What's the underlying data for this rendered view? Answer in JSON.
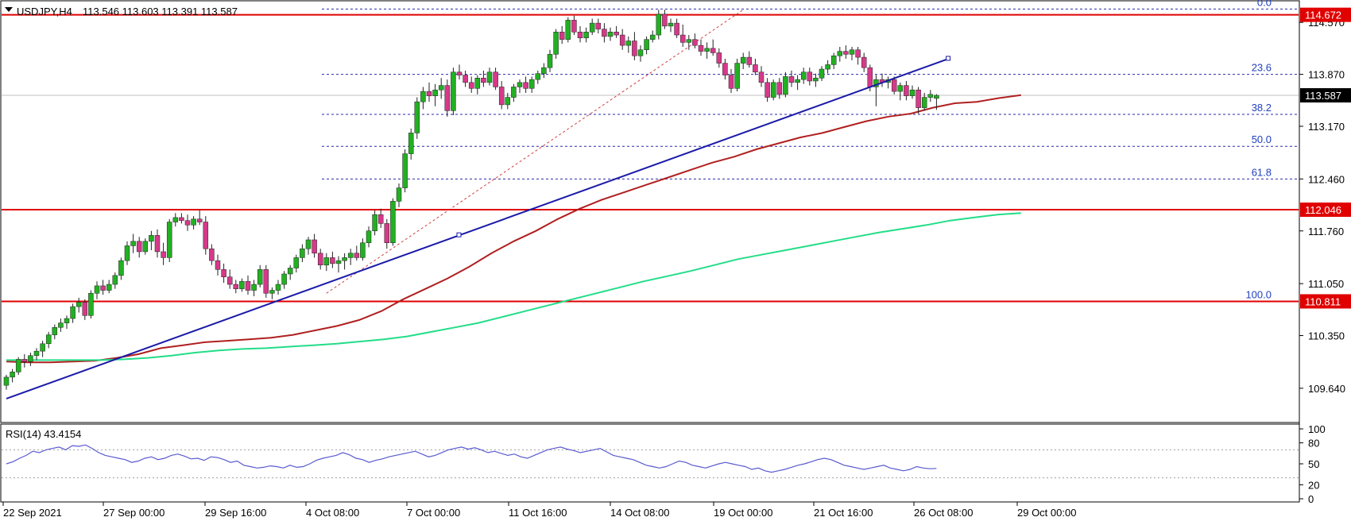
{
  "header": {
    "symbol": "USDJPY,H4",
    "ohlc": "113.546 113.603 113.391 113.587"
  },
  "rsi_header": "RSI(14) 43.4154",
  "colors": {
    "bull": "#22b022",
    "bear": "#d6398a",
    "ma_slow": "#b02020",
    "ma_long": "#22dd88",
    "trendline": "#1a1aa8",
    "resistance": "#e00000",
    "fib": "#2a2aa8",
    "rsi": "#5a5ad0"
  },
  "price_tags": [
    {
      "value": 114.672,
      "label": "114.672",
      "color": "#e00000"
    },
    {
      "value": 112.046,
      "label": "112.046",
      "color": "#e00000"
    },
    {
      "value": 110.811,
      "label": "110.811",
      "color": "#e00000"
    },
    {
      "value": 113.587,
      "label": "113.587",
      "color": "#000000"
    }
  ],
  "fib_levels": [
    {
      "label": "0.0",
      "value": 114.75
    },
    {
      "label": "23.6",
      "value": 113.87
    },
    {
      "label": "38.2",
      "value": 113.33
    },
    {
      "label": "50.0",
      "value": 112.9
    },
    {
      "label": "61.8",
      "value": 112.46
    },
    {
      "label": "100.0",
      "value": 110.81
    }
  ],
  "chart_data": {
    "type": "candlestick",
    "symbol": "USDJPY",
    "timeframe": "H4",
    "ylim": [
      109.2,
      114.85
    ],
    "y_ticks": [
      "114.570",
      "113.870",
      "113.170",
      "112.460",
      "111.760",
      "111.050",
      "110.350",
      "109.640"
    ],
    "x_ticks": [
      "22 Sep 2021",
      "27 Sep 00:00",
      "29 Sep 16:00",
      "4 Oct 08:00",
      "7 Oct 00:00",
      "11 Oct 16:00",
      "14 Oct 08:00",
      "19 Oct 00:00",
      "21 Oct 16:00",
      "26 Oct 08:00",
      "29 Oct 00:00"
    ],
    "candles": [
      [
        109.68,
        109.82,
        109.62,
        109.79
      ],
      [
        109.79,
        109.9,
        109.72,
        109.86
      ],
      [
        109.86,
        110.06,
        109.82,
        110.03
      ],
      [
        110.03,
        110.1,
        109.92,
        110.0
      ],
      [
        110.0,
        110.12,
        109.94,
        110.08
      ],
      [
        110.08,
        110.18,
        110.02,
        110.14
      ],
      [
        110.14,
        110.28,
        110.06,
        110.24
      ],
      [
        110.24,
        110.4,
        110.18,
        110.36
      ],
      [
        110.36,
        110.5,
        110.3,
        110.46
      ],
      [
        110.46,
        110.58,
        110.4,
        110.52
      ],
      [
        110.52,
        110.62,
        110.44,
        110.58
      ],
      [
        110.58,
        110.78,
        110.52,
        110.74
      ],
      [
        110.74,
        110.86,
        110.66,
        110.8
      ],
      [
        110.8,
        110.84,
        110.56,
        110.62
      ],
      [
        110.62,
        110.96,
        110.58,
        110.92
      ],
      [
        110.92,
        111.08,
        110.84,
        111.02
      ],
      [
        111.02,
        111.1,
        110.9,
        110.96
      ],
      [
        110.96,
        111.1,
        110.92,
        111.04
      ],
      [
        111.04,
        111.2,
        110.98,
        111.16
      ],
      [
        111.16,
        111.4,
        111.1,
        111.36
      ],
      [
        111.36,
        111.62,
        111.3,
        111.56
      ],
      [
        111.56,
        111.72,
        111.46,
        111.62
      ],
      [
        111.62,
        111.68,
        111.4,
        111.48
      ],
      [
        111.48,
        111.66,
        111.44,
        111.62
      ],
      [
        111.62,
        111.76,
        111.5,
        111.7
      ],
      [
        111.7,
        111.78,
        111.4,
        111.48
      ],
      [
        111.48,
        111.6,
        111.3,
        111.4
      ],
      [
        111.4,
        111.92,
        111.34,
        111.88
      ],
      [
        111.88,
        112.0,
        111.82,
        111.94
      ],
      [
        111.94,
        112.0,
        111.86,
        111.9
      ],
      [
        111.9,
        111.98,
        111.76,
        111.84
      ],
      [
        111.84,
        111.96,
        111.78,
        111.92
      ],
      [
        111.92,
        112.04,
        111.84,
        111.88
      ],
      [
        111.88,
        111.96,
        111.44,
        111.52
      ],
      [
        111.52,
        111.58,
        111.3,
        111.36
      ],
      [
        111.36,
        111.44,
        111.16,
        111.24
      ],
      [
        111.24,
        111.32,
        111.06,
        111.14
      ],
      [
        111.14,
        111.24,
        110.98,
        111.04
      ],
      [
        111.04,
        111.1,
        110.92,
        110.98
      ],
      [
        110.98,
        111.12,
        110.94,
        111.08
      ],
      [
        111.08,
        111.16,
        110.9,
        110.96
      ],
      [
        110.96,
        111.1,
        110.88,
        111.04
      ],
      [
        111.04,
        111.3,
        111.0,
        111.24
      ],
      [
        111.24,
        111.3,
        110.86,
        110.92
      ],
      [
        110.92,
        111.0,
        110.84,
        110.96
      ],
      [
        110.96,
        111.1,
        110.9,
        111.04
      ],
      [
        111.04,
        111.22,
        110.98,
        111.18
      ],
      [
        111.18,
        111.3,
        111.1,
        111.26
      ],
      [
        111.26,
        111.44,
        111.2,
        111.4
      ],
      [
        111.4,
        111.58,
        111.34,
        111.52
      ],
      [
        111.52,
        111.68,
        111.44,
        111.64
      ],
      [
        111.64,
        111.72,
        111.4,
        111.46
      ],
      [
        111.46,
        111.52,
        111.24,
        111.3
      ],
      [
        111.3,
        111.46,
        111.22,
        111.4
      ],
      [
        111.4,
        111.48,
        111.26,
        111.32
      ],
      [
        111.32,
        111.42,
        111.2,
        111.36
      ],
      [
        111.36,
        111.46,
        111.24,
        111.4
      ],
      [
        111.4,
        111.52,
        111.3,
        111.46
      ],
      [
        111.46,
        111.56,
        111.36,
        111.4
      ],
      [
        111.4,
        111.66,
        111.36,
        111.6
      ],
      [
        111.6,
        111.82,
        111.54,
        111.76
      ],
      [
        111.76,
        112.04,
        111.7,
        111.98
      ],
      [
        111.98,
        112.06,
        111.8,
        111.86
      ],
      [
        111.86,
        111.92,
        111.52,
        111.6
      ],
      [
        111.6,
        112.2,
        111.56,
        112.16
      ],
      [
        112.16,
        112.4,
        112.08,
        112.34
      ],
      [
        112.34,
        112.86,
        112.28,
        112.8
      ],
      [
        112.8,
        113.14,
        112.72,
        113.08
      ],
      [
        113.08,
        113.56,
        113.0,
        113.5
      ],
      [
        113.5,
        113.7,
        113.4,
        113.64
      ],
      [
        113.64,
        113.76,
        113.5,
        113.58
      ],
      [
        113.58,
        113.74,
        113.44,
        113.66
      ],
      [
        113.66,
        113.82,
        113.54,
        113.72
      ],
      [
        113.72,
        113.8,
        113.3,
        113.38
      ],
      [
        113.38,
        113.96,
        113.32,
        113.9
      ],
      [
        113.9,
        114.0,
        113.8,
        113.86
      ],
      [
        113.86,
        113.92,
        113.7,
        113.76
      ],
      [
        113.76,
        113.84,
        113.62,
        113.68
      ],
      [
        113.68,
        113.86,
        113.6,
        113.82
      ],
      [
        113.82,
        113.92,
        113.7,
        113.76
      ],
      [
        113.76,
        113.96,
        113.72,
        113.9
      ],
      [
        113.9,
        113.96,
        113.66,
        113.7
      ],
      [
        113.7,
        113.78,
        113.4,
        113.46
      ],
      [
        113.46,
        113.62,
        113.4,
        113.56
      ],
      [
        113.56,
        113.74,
        113.5,
        113.7
      ],
      [
        113.7,
        113.8,
        113.62,
        113.76
      ],
      [
        113.76,
        113.84,
        113.62,
        113.68
      ],
      [
        113.68,
        113.84,
        113.62,
        113.8
      ],
      [
        113.8,
        113.92,
        113.74,
        113.88
      ],
      [
        113.88,
        114.02,
        113.82,
        113.96
      ],
      [
        113.96,
        114.2,
        113.9,
        114.14
      ],
      [
        114.14,
        114.48,
        114.08,
        114.44
      ],
      [
        114.44,
        114.52,
        114.28,
        114.34
      ],
      [
        114.34,
        114.64,
        114.3,
        114.6
      ],
      [
        114.6,
        114.66,
        114.4,
        114.44
      ],
      [
        114.44,
        114.52,
        114.3,
        114.36
      ],
      [
        114.36,
        114.5,
        114.3,
        114.44
      ],
      [
        114.44,
        114.62,
        114.4,
        114.56
      ],
      [
        114.56,
        114.62,
        114.42,
        114.48
      ],
      [
        114.48,
        114.56,
        114.3,
        114.38
      ],
      [
        114.38,
        114.5,
        114.32,
        114.44
      ],
      [
        114.44,
        114.52,
        114.36,
        114.4
      ],
      [
        114.4,
        114.48,
        114.2,
        114.26
      ],
      [
        114.26,
        114.38,
        114.16,
        114.32
      ],
      [
        114.32,
        114.44,
        114.06,
        114.12
      ],
      [
        114.12,
        114.26,
        114.04,
        114.2
      ],
      [
        114.2,
        114.38,
        114.14,
        114.34
      ],
      [
        114.34,
        114.46,
        114.3,
        114.4
      ],
      [
        114.4,
        114.74,
        114.34,
        114.68
      ],
      [
        114.68,
        114.74,
        114.48,
        114.52
      ],
      [
        114.52,
        114.62,
        114.44,
        114.56
      ],
      [
        114.56,
        114.62,
        114.36,
        114.4
      ],
      [
        114.4,
        114.54,
        114.24,
        114.3
      ],
      [
        114.3,
        114.4,
        114.2,
        114.34
      ],
      [
        114.34,
        114.42,
        114.22,
        114.26
      ],
      [
        114.26,
        114.34,
        114.12,
        114.18
      ],
      [
        114.18,
        114.3,
        114.08,
        114.22
      ],
      [
        114.22,
        114.34,
        114.12,
        114.16
      ],
      [
        114.16,
        114.22,
        113.96,
        114.02
      ],
      [
        114.02,
        114.08,
        113.8,
        113.86
      ],
      [
        113.86,
        113.94,
        113.62,
        113.68
      ],
      [
        113.68,
        114.08,
        113.64,
        114.02
      ],
      [
        114.02,
        114.16,
        113.94,
        114.1
      ],
      [
        114.1,
        114.18,
        113.96,
        114.0
      ],
      [
        114.0,
        114.08,
        113.86,
        113.9
      ],
      [
        113.9,
        113.98,
        113.7,
        113.76
      ],
      [
        113.76,
        113.82,
        113.5,
        113.56
      ],
      [
        113.56,
        113.8,
        113.52,
        113.76
      ],
      [
        113.76,
        113.82,
        113.54,
        113.6
      ],
      [
        113.6,
        113.9,
        113.56,
        113.84
      ],
      [
        113.84,
        113.92,
        113.7,
        113.76
      ],
      [
        113.76,
        113.86,
        113.66,
        113.8
      ],
      [
        113.8,
        113.96,
        113.74,
        113.9
      ],
      [
        113.9,
        113.96,
        113.72,
        113.78
      ],
      [
        113.78,
        113.88,
        113.7,
        113.82
      ],
      [
        113.82,
        113.98,
        113.78,
        113.94
      ],
      [
        113.94,
        114.06,
        113.88,
        114.0
      ],
      [
        114.0,
        114.16,
        113.94,
        114.12
      ],
      [
        114.12,
        114.24,
        114.04,
        114.18
      ],
      [
        114.18,
        114.26,
        114.08,
        114.14
      ],
      [
        114.14,
        114.24,
        114.06,
        114.2
      ],
      [
        114.2,
        114.24,
        114.0,
        114.1
      ],
      [
        114.1,
        114.16,
        113.9,
        113.96
      ],
      [
        113.96,
        114.0,
        113.64,
        113.7
      ],
      [
        113.7,
        113.86,
        113.44,
        113.8
      ],
      [
        113.8,
        113.88,
        113.7,
        113.76
      ],
      [
        113.76,
        113.84,
        113.68,
        113.8
      ],
      [
        113.8,
        113.84,
        113.6,
        113.64
      ],
      [
        113.64,
        113.76,
        113.52,
        113.72
      ],
      [
        113.72,
        113.78,
        113.52,
        113.58
      ],
      [
        113.58,
        113.72,
        113.54,
        113.66
      ],
      [
        113.66,
        113.7,
        113.34,
        113.42
      ],
      [
        113.42,
        113.62,
        113.38,
        113.56
      ],
      [
        113.56,
        113.66,
        113.5,
        113.6
      ],
      [
        113.546,
        113.603,
        113.391,
        113.587
      ]
    ],
    "series": [
      {
        "name": "",
        "role": "moving-average-red",
        "x_start": 0,
        "x_end": 168,
        "values": [
          110.0,
          109.99,
          109.99,
          110.0,
          110.01,
          110.05,
          110.1,
          110.18,
          110.22,
          110.26,
          110.28,
          110.3,
          110.32,
          110.36,
          110.42,
          110.48,
          110.56,
          110.68,
          110.84,
          110.98,
          111.12,
          111.28,
          111.46,
          111.62,
          111.76,
          111.92,
          112.06,
          112.18,
          112.28,
          112.38,
          112.48,
          112.58,
          112.68,
          112.76,
          112.86,
          112.94,
          113.02,
          113.08,
          113.16,
          113.24,
          113.3,
          113.34,
          113.42,
          113.48,
          113.5,
          113.55,
          113.59
        ]
      },
      {
        "name": "",
        "role": "moving-average-green",
        "x_start": 0,
        "x_end": 168,
        "values": [
          110.02,
          110.02,
          110.02,
          110.02,
          110.02,
          110.03,
          110.05,
          110.08,
          110.12,
          110.15,
          110.17,
          110.18,
          110.2,
          110.22,
          110.24,
          110.27,
          110.3,
          110.34,
          110.4,
          110.46,
          110.52,
          110.6,
          110.68,
          110.76,
          110.84,
          110.92,
          111.0,
          111.08,
          111.15,
          111.22,
          111.3,
          111.38,
          111.44,
          111.5,
          111.56,
          111.62,
          111.68,
          111.74,
          111.79,
          111.84,
          111.9,
          111.94,
          111.98,
          112.0
        ]
      }
    ],
    "trendline": {
      "from": [
        0,
        109.5
      ],
      "to": [
        156,
        114.08
      ]
    },
    "fib_dashed": {
      "from": [
        53,
        110.92
      ],
      "to": [
        122,
        114.74
      ]
    },
    "horizontal_lines": [
      114.672,
      112.046,
      110.811
    ],
    "current_price_line": 113.587,
    "rsi": {
      "label": "RSI(14)",
      "value": 43.4154,
      "ylim": [
        0,
        100
      ],
      "y_ticks": [
        "100",
        "80",
        "50",
        "20",
        "0"
      ],
      "levels": [
        70,
        30
      ],
      "values": [
        50,
        53,
        58,
        62,
        68,
        66,
        70,
        72,
        74,
        70,
        76,
        75,
        77,
        72,
        66,
        62,
        60,
        58,
        56,
        52,
        54,
        58,
        60,
        56,
        58,
        62,
        64,
        61,
        57,
        58,
        55,
        60,
        59,
        56,
        52,
        54,
        48,
        46,
        44,
        45,
        47,
        46,
        44,
        48,
        45,
        46,
        50,
        55,
        58,
        60,
        62,
        66,
        63,
        58,
        56,
        52,
        55,
        57,
        60,
        62,
        64,
        66,
        68,
        64,
        60,
        62,
        66,
        70,
        72,
        74,
        71,
        73,
        70,
        66,
        68,
        65,
        62,
        64,
        60,
        58,
        62,
        66,
        70,
        72,
        74,
        71,
        69,
        66,
        68,
        70,
        72,
        67,
        62,
        60,
        58,
        56,
        52,
        48,
        46,
        44,
        46,
        50,
        54,
        52,
        48,
        46,
        44,
        47,
        50,
        52,
        50,
        48,
        46,
        42,
        44,
        40,
        38,
        40,
        42,
        45,
        48,
        50,
        53,
        56,
        58,
        56,
        52,
        48,
        46,
        44,
        42,
        44,
        46,
        48,
        44,
        42,
        40,
        42,
        46,
        44,
        43,
        43.4154
      ]
    }
  }
}
